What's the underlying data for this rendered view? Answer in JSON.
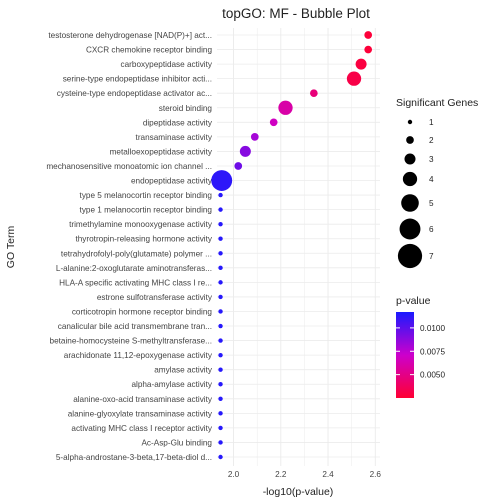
{
  "chart_data": {
    "type": "scatter",
    "title": "topGO: MF - Bubble Plot",
    "xlabel": "-log10(p-value)",
    "ylabel": "GO Term",
    "xlim": [
      1.93,
      2.62
    ],
    "x_ticks": [
      "2.0",
      "2.2",
      "2.4",
      "2.6"
    ],
    "x_tick_values": [
      2.0,
      2.2,
      2.4,
      2.6
    ],
    "grid": true,
    "legend_size_title": "Significant Genes",
    "legend_size_values": [
      "1",
      "2",
      "3",
      "4",
      "5",
      "6",
      "7"
    ],
    "legend_color_title": "p-value",
    "legend_color_ticks": [
      "0.0100",
      "0.0075",
      "0.0050"
    ],
    "legend_color_tick_values": [
      0.01,
      0.0075,
      0.005
    ],
    "color_range": [
      0.0025,
      0.0117
    ],
    "color_low": "#ff0033",
    "color_high": "#1a1aff",
    "terms": [
      {
        "label": "testosterone dehydrogenase [NAD(P)+] act...",
        "x": 2.57,
        "genes": 2,
        "pvalue": 0.0027
      },
      {
        "label": "CXCR chemokine receptor binding",
        "x": 2.57,
        "genes": 2,
        "pvalue": 0.0027
      },
      {
        "label": "carboxypeptidase activity",
        "x": 2.54,
        "genes": 3,
        "pvalue": 0.0029
      },
      {
        "label": "serine-type endopeptidase inhibitor acti...",
        "x": 2.51,
        "genes": 4,
        "pvalue": 0.0031
      },
      {
        "label": "cysteine-type endopeptidase activator ac...",
        "x": 2.34,
        "genes": 2,
        "pvalue": 0.0046
      },
      {
        "label": "steroid binding",
        "x": 2.22,
        "genes": 4,
        "pvalue": 0.006
      },
      {
        "label": "dipeptidase activity",
        "x": 2.17,
        "genes": 2,
        "pvalue": 0.0068
      },
      {
        "label": "transaminase activity",
        "x": 2.09,
        "genes": 2,
        "pvalue": 0.0081
      },
      {
        "label": "metalloexopeptidase activity",
        "x": 2.05,
        "genes": 3,
        "pvalue": 0.0089
      },
      {
        "label": "mechanosensitive monoatomic ion channel ...",
        "x": 2.02,
        "genes": 2,
        "pvalue": 0.0095
      },
      {
        "label": "endopeptidase activity",
        "x": 1.95,
        "genes": 6,
        "pvalue": 0.0112
      },
      {
        "label": "type 5 melanocortin receptor binding",
        "x": 1.945,
        "genes": 1,
        "pvalue": 0.0114
      },
      {
        "label": "type 1 melanocortin receptor binding",
        "x": 1.945,
        "genes": 1,
        "pvalue": 0.0114
      },
      {
        "label": "trimethylamine monooxygenase activity",
        "x": 1.945,
        "genes": 1,
        "pvalue": 0.0114
      },
      {
        "label": "thyrotropin-releasing hormone activity",
        "x": 1.945,
        "genes": 1,
        "pvalue": 0.0114
      },
      {
        "label": "tetrahydrofolyl-poly(glutamate) polymer ...",
        "x": 1.945,
        "genes": 1,
        "pvalue": 0.0114
      },
      {
        "label": "L-alanine:2-oxoglutarate aminotransferas...",
        "x": 1.945,
        "genes": 1,
        "pvalue": 0.0114
      },
      {
        "label": "HLA-A specific activating MHC class I re...",
        "x": 1.945,
        "genes": 1,
        "pvalue": 0.0114
      },
      {
        "label": "estrone sulfotransferase activity",
        "x": 1.945,
        "genes": 1,
        "pvalue": 0.0114
      },
      {
        "label": "corticotropin hormone receptor binding",
        "x": 1.945,
        "genes": 1,
        "pvalue": 0.0114
      },
      {
        "label": "canalicular bile acid transmembrane tran...",
        "x": 1.945,
        "genes": 1,
        "pvalue": 0.0114
      },
      {
        "label": "betaine-homocysteine S-methyltransferase...",
        "x": 1.945,
        "genes": 1,
        "pvalue": 0.0114
      },
      {
        "label": "arachidonate 11,12-epoxygenase activity",
        "x": 1.945,
        "genes": 1,
        "pvalue": 0.0114
      },
      {
        "label": "amylase activity",
        "x": 1.945,
        "genes": 1,
        "pvalue": 0.0114
      },
      {
        "label": "alpha-amylase activity",
        "x": 1.945,
        "genes": 1,
        "pvalue": 0.0114
      },
      {
        "label": "alanine-oxo-acid transaminase activity",
        "x": 1.945,
        "genes": 1,
        "pvalue": 0.0114
      },
      {
        "label": "alanine-glyoxylate transaminase activity",
        "x": 1.945,
        "genes": 1,
        "pvalue": 0.0114
      },
      {
        "label": "activating MHC class I receptor activity",
        "x": 1.945,
        "genes": 1,
        "pvalue": 0.0114
      },
      {
        "label": "Ac-Asp-Glu binding",
        "x": 1.945,
        "genes": 1,
        "pvalue": 0.0114
      },
      {
        "label": "5-alpha-androstane-3-beta,17-beta-diol d...",
        "x": 1.945,
        "genes": 1,
        "pvalue": 0.0114
      }
    ]
  }
}
